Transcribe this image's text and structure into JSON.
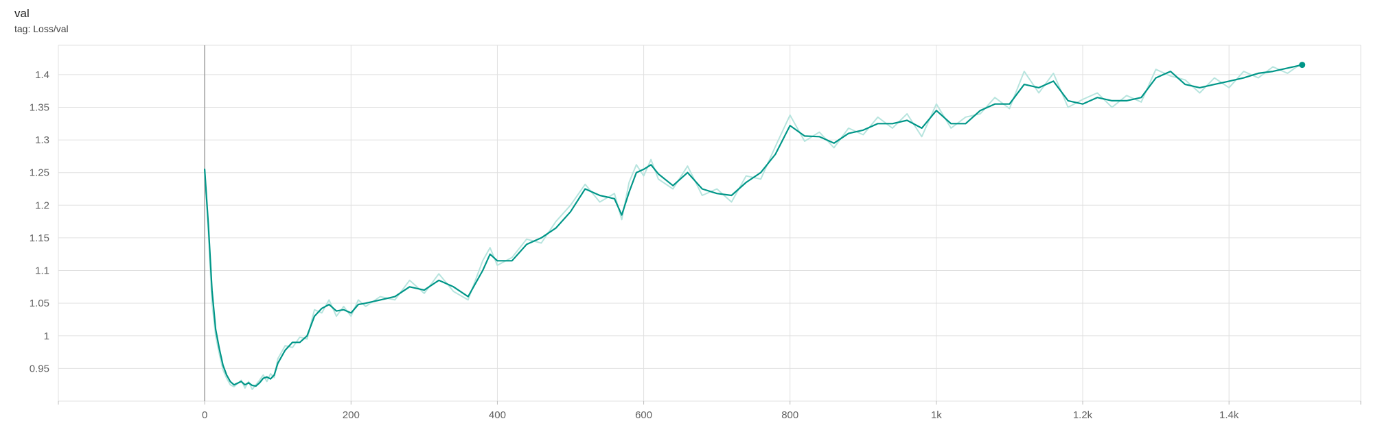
{
  "card": {
    "title": "val",
    "tag": "tag: Loss/val"
  },
  "colors": {
    "series": "#009688",
    "raw": "#b7e4de",
    "grid": "#e0e0e0",
    "axis_zero": "#9e9e9e"
  },
  "chart_data": {
    "type": "line",
    "title": "val",
    "subtitle": "tag: Loss/val",
    "xlabel": "",
    "ylabel": "",
    "xlim": [
      -200,
      1580
    ],
    "ylim": [
      0.9,
      1.445
    ],
    "x_ticks": [
      0,
      200,
      400,
      600,
      800,
      1000,
      1200,
      1400
    ],
    "x_tick_labels": [
      "0",
      "200",
      "400",
      "600",
      "800",
      "1k",
      "1.2k",
      "1.4k"
    ],
    "y_ticks": [
      0.95,
      1,
      1.05,
      1.1,
      1.15,
      1.2,
      1.25,
      1.3,
      1.35,
      1.4
    ],
    "y_tick_labels": [
      "0.95",
      "1",
      "1.05",
      "1.1",
      "1.15",
      "1.2",
      "1.25",
      "1.3",
      "1.35",
      "1.4"
    ],
    "grid": true,
    "series": [
      {
        "smoothed": true,
        "x": [
          0,
          5,
          10,
          15,
          20,
          25,
          30,
          35,
          40,
          50,
          55,
          60,
          65,
          70,
          75,
          80,
          85,
          90,
          95,
          100,
          110,
          120,
          130,
          140,
          150,
          160,
          170,
          180,
          190,
          200,
          210,
          220,
          240,
          260,
          280,
          300,
          320,
          340,
          360,
          380,
          390,
          400,
          420,
          440,
          460,
          480,
          500,
          520,
          540,
          560,
          570,
          580,
          590,
          600,
          610,
          620,
          640,
          660,
          680,
          700,
          720,
          740,
          760,
          780,
          800,
          820,
          840,
          860,
          880,
          900,
          920,
          940,
          960,
          980,
          1000,
          1020,
          1040,
          1060,
          1080,
          1100,
          1120,
          1140,
          1160,
          1180,
          1200,
          1220,
          1240,
          1260,
          1280,
          1300,
          1320,
          1340,
          1360,
          1380,
          1400,
          1420,
          1440,
          1460,
          1480,
          1500
        ],
        "y": [
          1.255,
          1.17,
          1.07,
          1.01,
          0.98,
          0.955,
          0.94,
          0.93,
          0.925,
          0.93,
          0.925,
          0.928,
          0.924,
          0.923,
          0.928,
          0.935,
          0.937,
          0.934,
          0.94,
          0.958,
          0.978,
          0.99,
          0.99,
          1.0,
          1.03,
          1.042,
          1.048,
          1.038,
          1.04,
          1.035,
          1.048,
          1.05,
          1.055,
          1.06,
          1.075,
          1.07,
          1.085,
          1.075,
          1.06,
          1.1,
          1.125,
          1.115,
          1.115,
          1.14,
          1.15,
          1.165,
          1.19,
          1.225,
          1.215,
          1.21,
          1.185,
          1.22,
          1.25,
          1.255,
          1.262,
          1.248,
          1.23,
          1.25,
          1.225,
          1.218,
          1.215,
          1.235,
          1.25,
          1.278,
          1.322,
          1.306,
          1.305,
          1.295,
          1.31,
          1.315,
          1.325,
          1.325,
          1.33,
          1.318,
          1.345,
          1.325,
          1.325,
          1.345,
          1.355,
          1.355,
          1.385,
          1.38,
          1.39,
          1.36,
          1.355,
          1.365,
          1.36,
          1.36,
          1.365,
          1.395,
          1.405,
          1.385,
          1.38,
          1.385,
          1.39,
          1.395,
          1.402,
          1.405,
          1.41,
          1.415
        ]
      },
      {
        "smoothed": false,
        "x": [
          0,
          5,
          10,
          15,
          20,
          25,
          30,
          35,
          40,
          50,
          55,
          60,
          65,
          70,
          75,
          80,
          85,
          90,
          95,
          100,
          110,
          120,
          130,
          140,
          150,
          160,
          170,
          180,
          190,
          200,
          210,
          220,
          240,
          260,
          280,
          300,
          320,
          340,
          360,
          380,
          390,
          400,
          420,
          440,
          460,
          480,
          500,
          520,
          540,
          560,
          570,
          580,
          590,
          600,
          610,
          620,
          640,
          660,
          680,
          700,
          720,
          740,
          760,
          780,
          800,
          820,
          840,
          860,
          880,
          900,
          920,
          940,
          960,
          980,
          1000,
          1020,
          1040,
          1060,
          1080,
          1100,
          1120,
          1140,
          1160,
          1180,
          1200,
          1220,
          1240,
          1260,
          1280,
          1300,
          1320,
          1340,
          1360,
          1380,
          1400,
          1420,
          1440,
          1460,
          1480,
          1500
        ],
        "y": [
          1.255,
          1.16,
          1.05,
          1.0,
          0.972,
          0.948,
          0.935,
          0.925,
          0.922,
          0.932,
          0.92,
          0.93,
          0.918,
          0.925,
          0.932,
          0.94,
          0.93,
          0.942,
          0.936,
          0.965,
          0.985,
          0.982,
          0.998,
          0.995,
          1.04,
          1.035,
          1.055,
          1.03,
          1.045,
          1.03,
          1.055,
          1.045,
          1.06,
          1.055,
          1.085,
          1.065,
          1.095,
          1.068,
          1.055,
          1.115,
          1.135,
          1.108,
          1.12,
          1.148,
          1.142,
          1.175,
          1.2,
          1.232,
          1.205,
          1.218,
          1.178,
          1.235,
          1.262,
          1.245,
          1.27,
          1.24,
          1.225,
          1.26,
          1.215,
          1.225,
          1.205,
          1.245,
          1.24,
          1.29,
          1.338,
          1.298,
          1.312,
          1.288,
          1.318,
          1.308,
          1.335,
          1.318,
          1.34,
          1.305,
          1.355,
          1.318,
          1.335,
          1.34,
          1.365,
          1.348,
          1.405,
          1.372,
          1.402,
          1.35,
          1.362,
          1.372,
          1.35,
          1.368,
          1.358,
          1.408,
          1.398,
          1.392,
          1.372,
          1.395,
          1.38,
          1.405,
          1.395,
          1.412,
          1.402,
          1.418
        ]
      }
    ],
    "end_marker": {
      "x": 1500,
      "y": 1.415
    }
  }
}
